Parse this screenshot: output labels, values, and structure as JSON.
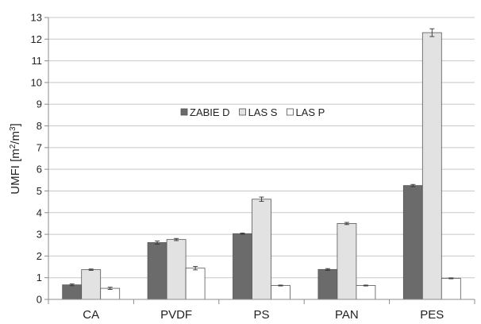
{
  "chart_data": {
    "type": "bar",
    "title": "",
    "xlabel": "",
    "ylabel": "UMFI [m²/m³]",
    "ylabel_parts": {
      "base": "UMFI [m",
      "sup1": "2",
      "mid": "/m",
      "sup2": "3",
      "end": "]"
    },
    "ylim": [
      0,
      13
    ],
    "yticks": [
      0,
      1,
      2,
      3,
      4,
      5,
      6,
      7,
      8,
      9,
      10,
      11,
      12,
      13
    ],
    "grid": true,
    "legend_placement": "center-left",
    "categories": [
      "CA",
      "PVDF",
      "PS",
      "PAN",
      "PES"
    ],
    "series": [
      {
        "name": "ZABIE D",
        "color": "#6b6b6b",
        "values": [
          0.67,
          2.62,
          3.03,
          1.38,
          5.25
        ],
        "errors": [
          0.04,
          0.07,
          0.03,
          0.04,
          0.05
        ]
      },
      {
        "name": "LAS S",
        "color": "#e2e2e2",
        "values": [
          1.37,
          2.76,
          4.62,
          3.5,
          12.3
        ],
        "errors": [
          0.03,
          0.05,
          0.1,
          0.05,
          0.18
        ]
      },
      {
        "name": "LAS P",
        "color": "#ffffff",
        "values": [
          0.51,
          1.44,
          0.64,
          0.64,
          0.97
        ],
        "errors": [
          0.05,
          0.08,
          0.02,
          0.02,
          0.02
        ]
      }
    ]
  }
}
